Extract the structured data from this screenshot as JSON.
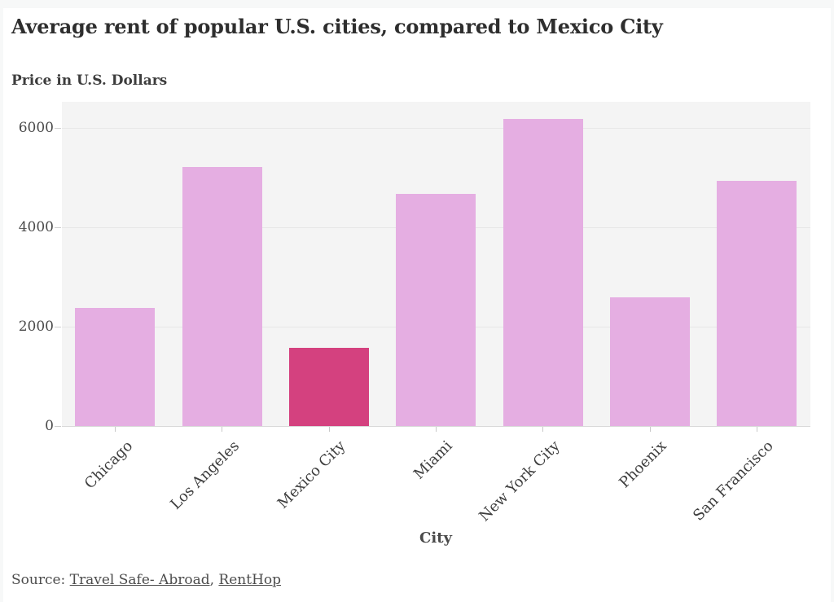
{
  "chart_data": {
    "type": "bar",
    "title": "Average rent of popular U.S. cities, compared to Mexico City",
    "ylabel": "Price in U.S. Dollars",
    "xlabel": "City",
    "categories": [
      "Chicago",
      "Los Angeles",
      "Mexico City",
      "Miami",
      "New York City",
      "Phoenix",
      "San Francisco"
    ],
    "values": [
      2380,
      5210,
      1575,
      4670,
      6180,
      2590,
      4930
    ],
    "ylim": [
      0,
      6520
    ],
    "yticks": [
      0,
      2000,
      4000,
      6000
    ],
    "grid": "horizontal",
    "legend": "none",
    "bar_color": "#e5aee2",
    "highlight_color": "#d4417f",
    "highlight_category": "Mexico City",
    "plot_background": "#f4f4f4"
  },
  "footer": {
    "prefix": "Source:",
    "separator": ",",
    "links": [
      {
        "label": "Travel Safe- Abroad"
      },
      {
        "label": "RentHop"
      }
    ]
  }
}
